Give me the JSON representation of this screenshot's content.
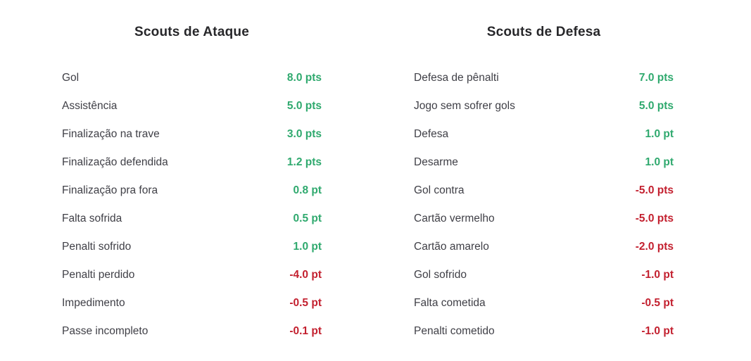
{
  "colors": {
    "positive": "#2fa96e",
    "negative": "#c3202f",
    "title": "#27272a",
    "label": "#3f3f46",
    "background": "#ffffff"
  },
  "columns": [
    {
      "title": "Scouts de Ataque",
      "items": [
        {
          "label": "Gol",
          "value": "8.0 pts",
          "sign": "positive"
        },
        {
          "label": "Assistência",
          "value": "5.0 pts",
          "sign": "positive"
        },
        {
          "label": "Finalização na trave",
          "value": "3.0 pts",
          "sign": "positive"
        },
        {
          "label": "Finalização defendida",
          "value": "1.2 pts",
          "sign": "positive"
        },
        {
          "label": "Finalização pra fora",
          "value": "0.8 pt",
          "sign": "positive"
        },
        {
          "label": "Falta sofrida",
          "value": "0.5 pt",
          "sign": "positive"
        },
        {
          "label": "Penalti sofrido",
          "value": "1.0 pt",
          "sign": "positive"
        },
        {
          "label": "Penalti perdido",
          "value": "-4.0 pt",
          "sign": "negative"
        },
        {
          "label": "Impedimento",
          "value": "-0.5 pt",
          "sign": "negative"
        },
        {
          "label": "Passe incompleto",
          "value": "-0.1 pt",
          "sign": "negative"
        }
      ]
    },
    {
      "title": "Scouts de Defesa",
      "items": [
        {
          "label": "Defesa de pênalti",
          "value": "7.0 pts",
          "sign": "positive"
        },
        {
          "label": "Jogo sem sofrer gols",
          "value": "5.0 pts",
          "sign": "positive"
        },
        {
          "label": "Defesa",
          "value": "1.0 pt",
          "sign": "positive"
        },
        {
          "label": "Desarme",
          "value": "1.0 pt",
          "sign": "positive"
        },
        {
          "label": "Gol contra",
          "value": "-5.0 pts",
          "sign": "negative"
        },
        {
          "label": "Cartão vermelho",
          "value": "-5.0 pts",
          "sign": "negative"
        },
        {
          "label": "Cartão amarelo",
          "value": "-2.0 pts",
          "sign": "negative"
        },
        {
          "label": "Gol sofrido",
          "value": "-1.0 pt",
          "sign": "negative"
        },
        {
          "label": "Falta cometida",
          "value": "-0.5 pt",
          "sign": "negative"
        },
        {
          "label": "Penalti cometido",
          "value": "-1.0 pt",
          "sign": "negative"
        }
      ]
    }
  ]
}
